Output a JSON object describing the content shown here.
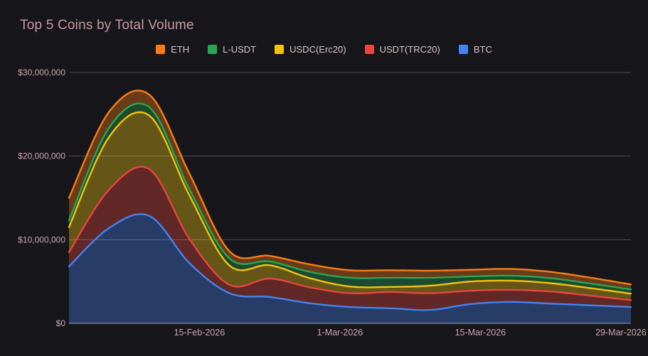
{
  "panel": {
    "title": "Top 5 Coins by Total Volume"
  },
  "colors": {
    "background": "#17171b",
    "title_text": "#c7979f",
    "axis_text": "#cda4ad",
    "legend_text": "#dcc2c6",
    "gridline": "rgba(255,255,255,0.24)",
    "baseline": "rgba(215,222,240,0.65)",
    "fill_alpha": 0.36
  },
  "chart_data": {
    "type": "area",
    "stacked": true,
    "title": "Top 5 Coins by Total Volume",
    "grid": true,
    "legend_position": "top",
    "ylim": [
      0,
      30000000
    ],
    "y_ticks": [
      {
        "label": "$0",
        "value": 0
      },
      {
        "label": "$10,000,000",
        "value": 10000000
      },
      {
        "label": "$20,000,000",
        "value": 20000000
      },
      {
        "label": "$30,000,000",
        "value": 30000000
      }
    ],
    "x": [
      "2-Feb-2026",
      "6-Feb-2026",
      "10-Feb-2026",
      "14-Feb-2026",
      "18-Feb-2026",
      "22-Feb-2026",
      "26-Feb-2026",
      "2-Mar-2026",
      "6-Mar-2026",
      "10-Mar-2026",
      "14-Mar-2026",
      "18-Mar-2026",
      "22-Mar-2026",
      "26-Mar-2026",
      "30-Mar-2026"
    ],
    "domain_days": 56,
    "x_ticks": [
      {
        "label": "15-Feb-2026",
        "day": 13
      },
      {
        "label": "1-Mar-2026",
        "day": 27
      },
      {
        "label": "15-Mar-2026",
        "day": 41
      },
      {
        "label": "29-Mar-2026",
        "day": 55
      }
    ],
    "series": [
      {
        "name": "BTC",
        "color": "#4583f0",
        "values": [
          6800000,
          11400000,
          12850000,
          7200000,
          3600000,
          3150000,
          2400000,
          1950000,
          1800000,
          1600000,
          2300000,
          2550000,
          2350000,
          2150000,
          1950000
        ]
      },
      {
        "name": "USDT(TRC20)",
        "color": "#e8463e",
        "values": [
          1700000,
          4600000,
          5600000,
          2900000,
          1000000,
          2200000,
          1900000,
          1650000,
          1950000,
          2000000,
          1600000,
          1450000,
          1450000,
          1150000,
          820000
        ]
      },
      {
        "name": "USDC(Erc20)",
        "color": "#f2c40d",
        "values": [
          3000000,
          6300000,
          6400000,
          5200000,
          2300000,
          1600000,
          1100000,
          800000,
          600000,
          900000,
          1100000,
          1100000,
          1000000,
          900000,
          780000
        ]
      },
      {
        "name": "L-USDT",
        "color": "#2aa650",
        "values": [
          800000,
          1100000,
          1000000,
          700000,
          850000,
          450000,
          750000,
          1050000,
          1100000,
          950000,
          600000,
          600000,
          600000,
          550000,
          500000
        ]
      },
      {
        "name": "ETH",
        "color": "#f97d16",
        "values": [
          2700000,
          1900000,
          1500000,
          1900000,
          850000,
          670000,
          900000,
          900000,
          900000,
          850000,
          800000,
          800000,
          750000,
          700000,
          600000
        ]
      }
    ],
    "legend_order": [
      "ETH",
      "L-USDT",
      "USDC(Erc20)",
      "USDT(TRC20)",
      "BTC"
    ]
  }
}
